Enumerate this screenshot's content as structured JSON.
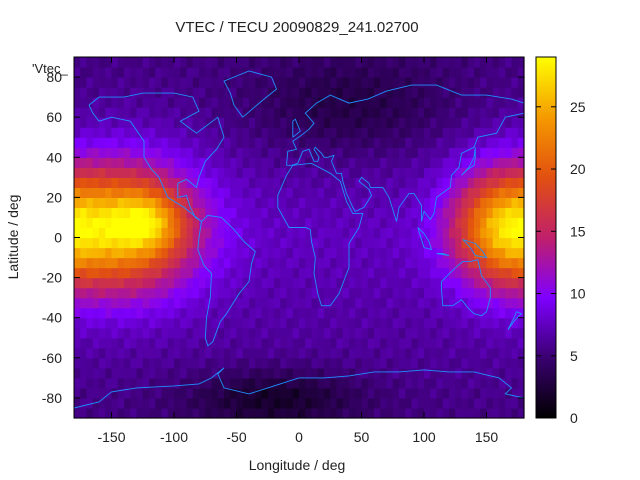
{
  "chart_data": {
    "type": "heatmap",
    "title": "VTEC / TECU 20090829_241.02700",
    "xlabel": "Longitude / deg",
    "ylabel": "Latitude / deg",
    "key_label": "'Vtec_",
    "xlim": [
      -180,
      180
    ],
    "ylim": [
      -90,
      90
    ],
    "xticks": [
      -150,
      -100,
      -50,
      0,
      50,
      100,
      150
    ],
    "yticks": [
      -80,
      -60,
      -40,
      -20,
      0,
      20,
      40,
      60,
      80
    ],
    "colorbar": {
      "min": 0,
      "max": 29,
      "ticks": [
        0,
        5,
        10,
        15,
        20,
        25
      ]
    },
    "colormap": [
      "#000000",
      "#3a0070",
      "#7f00ff",
      "#c0206a",
      "#e25010",
      "#f59a00",
      "#ffff00"
    ],
    "coastline_color": "#1e90ff",
    "grid": false,
    "legend": "none",
    "regions": [
      {
        "lon": -140,
        "lat": 5,
        "lon_sigma": 40,
        "lat_sigma": 22,
        "amplitude": 18
      },
      {
        "lon": -120,
        "lat": 8,
        "lon_sigma": 18,
        "lat_sigma": 10,
        "amplitude": 6
      },
      {
        "lon": 160,
        "lat": 5,
        "lon_sigma": 28,
        "lat_sigma": 20,
        "amplitude": 14
      },
      {
        "lon": -20,
        "lat": -80,
        "lon_sigma": 50,
        "lat_sigma": 10,
        "amplitude": -4
      },
      {
        "lon": 40,
        "lat": 65,
        "lon_sigma": 60,
        "lat_sigma": 18,
        "amplitude": -3
      }
    ],
    "background_vtec": 7.5
  }
}
